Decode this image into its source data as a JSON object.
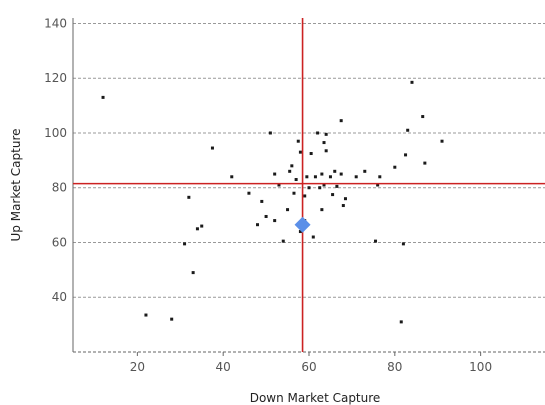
{
  "chart_data": {
    "type": "scatter",
    "title": "",
    "xlabel": "Down Market Capture",
    "ylabel": "Up Market Capture",
    "xlim": [
      5,
      115
    ],
    "ylim": [
      20,
      142
    ],
    "xticks": [
      20,
      40,
      60,
      80,
      100
    ],
    "yticks": [
      40,
      60,
      80,
      100,
      120,
      140
    ],
    "grid": "horizontal dashed",
    "colors": {
      "points": "#1a1a1a",
      "highlight": "#5b8fe8",
      "reference": "#cc2222",
      "grid": "#999999"
    },
    "reference_lines": {
      "x": 58.5,
      "y": 81.5
    },
    "highlight_point": {
      "x": 58.5,
      "y": 66.5
    },
    "points": [
      [
        12,
        113
      ],
      [
        22,
        33.5
      ],
      [
        28,
        32
      ],
      [
        31,
        59.5
      ],
      [
        32,
        76.5
      ],
      [
        33,
        49
      ],
      [
        34,
        65
      ],
      [
        35,
        66
      ],
      [
        37.5,
        94.5
      ],
      [
        42,
        84
      ],
      [
        46,
        78
      ],
      [
        48,
        66.5
      ],
      [
        49,
        75
      ],
      [
        50,
        69.5
      ],
      [
        51,
        100
      ],
      [
        52,
        68
      ],
      [
        52,
        85
      ],
      [
        53,
        81
      ],
      [
        54,
        60.5
      ],
      [
        55,
        72
      ],
      [
        55.5,
        86
      ],
      [
        56,
        88
      ],
      [
        56.5,
        78
      ],
      [
        57,
        83
      ],
      [
        57.5,
        97
      ],
      [
        58,
        64
      ],
      [
        58,
        93
      ],
      [
        59,
        68
      ],
      [
        59,
        77
      ],
      [
        59.5,
        84
      ],
      [
        60,
        80
      ],
      [
        60.5,
        92.5
      ],
      [
        61,
        62
      ],
      [
        61.5,
        84
      ],
      [
        62,
        100
      ],
      [
        62.5,
        80
      ],
      [
        63,
        72
      ],
      [
        63,
        85
      ],
      [
        63.5,
        81
      ],
      [
        63.5,
        96.5
      ],
      [
        64,
        93.5
      ],
      [
        64,
        99.5
      ],
      [
        65,
        84
      ],
      [
        65.5,
        77.5
      ],
      [
        66,
        86
      ],
      [
        66.5,
        80.5
      ],
      [
        67.5,
        104.5
      ],
      [
        67.5,
        85
      ],
      [
        68,
        73.5
      ],
      [
        68.5,
        76
      ],
      [
        71,
        84
      ],
      [
        73,
        86
      ],
      [
        76,
        81
      ],
      [
        75.5,
        60.5
      ],
      [
        76.5,
        84
      ],
      [
        80,
        87.5
      ],
      [
        81.5,
        31
      ],
      [
        82,
        59.5
      ],
      [
        82.5,
        92
      ],
      [
        83,
        101
      ],
      [
        84,
        118.5
      ],
      [
        86.5,
        106
      ],
      [
        87,
        89
      ],
      [
        91,
        97
      ]
    ]
  }
}
